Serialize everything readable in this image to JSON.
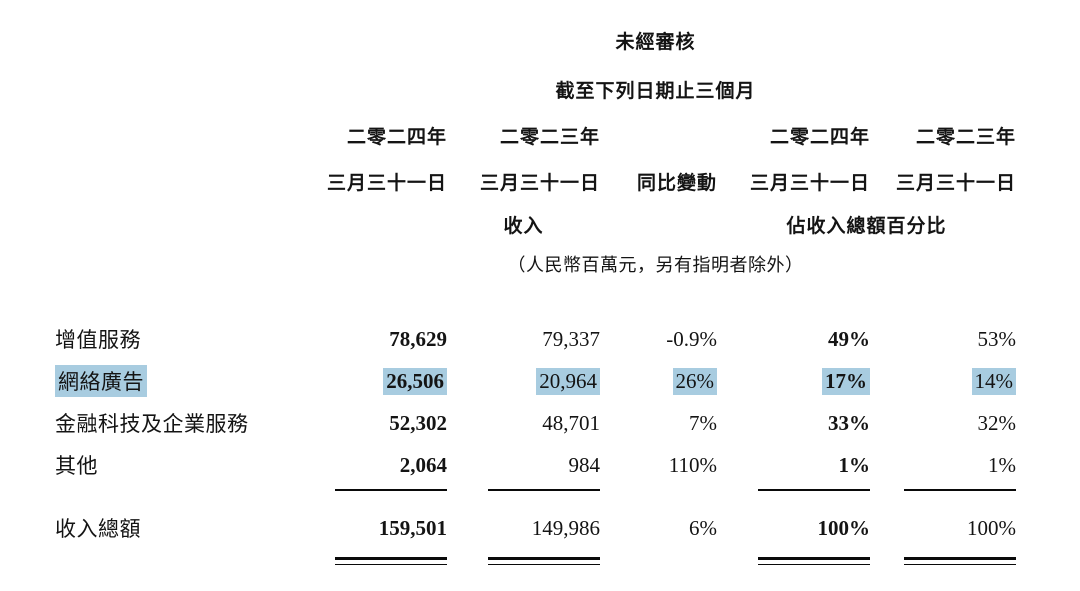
{
  "header": {
    "title1": "未經審核",
    "title2": "截至下列日期止三個月",
    "col_headers": [
      {
        "line1": "二零二四年",
        "line2": "三月三十一日"
      },
      {
        "line1": "二零二三年",
        "line2": "三月三十一日"
      },
      {
        "line1": "",
        "line2": "同比變動"
      },
      {
        "line1": "二零二四年",
        "line2": "三月三十一日"
      },
      {
        "line1": "二零二三年",
        "line2": "三月三十一日"
      }
    ],
    "group_revenue": "收入",
    "group_pct": "佔收入總額百分比",
    "unit_note": "（人民幣百萬元，另有指明者除外）"
  },
  "table": {
    "rows": [
      {
        "label": "增值服務",
        "v2024": "78,629",
        "v2023": "79,337",
        "yoy": "-0.9%",
        "p2024": "49%",
        "p2023": "53%",
        "highlighted": false
      },
      {
        "label": "網絡廣告",
        "v2024": "26,506",
        "v2023": "20,964",
        "yoy": "26%",
        "p2024": "17%",
        "p2023": "14%",
        "highlighted": true
      },
      {
        "label": "金融科技及企業服務",
        "v2024": "52,302",
        "v2023": "48,701",
        "yoy": "7%",
        "p2024": "33%",
        "p2023": "32%",
        "highlighted": false
      },
      {
        "label": "其他",
        "v2024": "2,064",
        "v2023": "984",
        "yoy": "110%",
        "p2024": "1%",
        "p2023": "1%",
        "highlighted": false
      }
    ],
    "total": {
      "label": "收入總額",
      "v2024": "159,501",
      "v2023": "149,986",
      "yoy": "6%",
      "p2024": "100%",
      "p2023": "100%"
    }
  },
  "colors": {
    "highlight": "#a8cce0"
  }
}
